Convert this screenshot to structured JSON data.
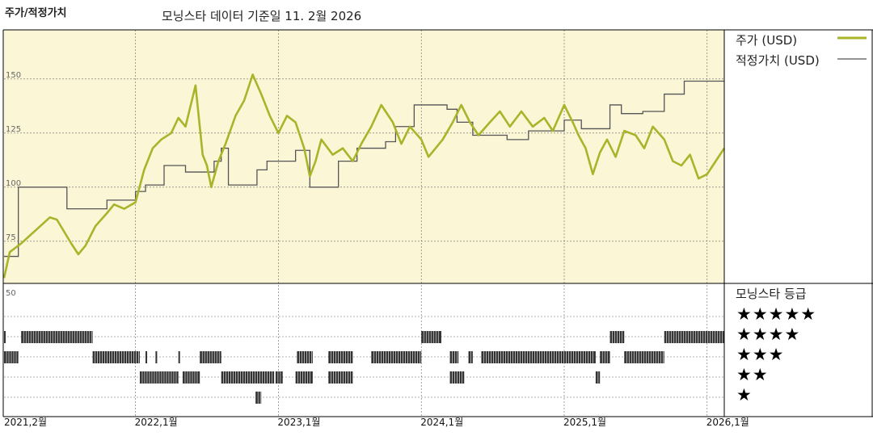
{
  "header": {
    "title": "주가/적정가치",
    "source": "모닝스타 데이터 기준일 11. 2월 2026"
  },
  "legend": {
    "price": "주가 (USD)",
    "fair_value": "적정가치 (USD)"
  },
  "rating_panel": {
    "title": "모닝스타 등급",
    "star_rows": [
      "★★★★★",
      "★★★★",
      "★★★",
      "★★",
      "★"
    ]
  },
  "colors": {
    "plot_bg": "#faf6d6",
    "price_line": "#a8b52a",
    "fair_value_line": "#555555",
    "rating_bar": "#333333",
    "grid": "#666666"
  },
  "chart_data": [
    {
      "type": "line",
      "title": "주가/적정가치",
      "y_ticks": [
        150,
        125,
        100,
        75
      ],
      "ylim": [
        50,
        155
      ],
      "x_start": 2021.08,
      "x_end": 2026.12,
      "x_ticks": [
        {
          "x": 2021.08,
          "label": "2021,2월"
        },
        {
          "x": 2022.0,
          "label": "2022,1월"
        },
        {
          "x": 2023.0,
          "label": "2023,1월"
        },
        {
          "x": 2024.0,
          "label": "2024,1월"
        },
        {
          "x": 2025.0,
          "label": "2025,1월"
        },
        {
          "x": 2026.0,
          "label": "2026,1월"
        }
      ],
      "grid": "dashed",
      "legend_position": "right",
      "series": [
        {
          "name": "주가 (USD)",
          "style": "line",
          "points": [
            [
              2021.08,
              58
            ],
            [
              2021.12,
              70
            ],
            [
              2021.2,
              74
            ],
            [
              2021.3,
              80
            ],
            [
              2021.4,
              86
            ],
            [
              2021.45,
              85
            ],
            [
              2021.55,
              74
            ],
            [
              2021.6,
              69
            ],
            [
              2021.65,
              73
            ],
            [
              2021.72,
              82
            ],
            [
              2021.8,
              88
            ],
            [
              2021.85,
              92
            ],
            [
              2021.92,
              90
            ],
            [
              2022.0,
              93
            ],
            [
              2022.06,
              108
            ],
            [
              2022.12,
              118
            ],
            [
              2022.18,
              122
            ],
            [
              2022.25,
              125
            ],
            [
              2022.3,
              132
            ],
            [
              2022.35,
              128
            ],
            [
              2022.42,
              147
            ],
            [
              2022.47,
              115
            ],
            [
              2022.5,
              110
            ],
            [
              2022.53,
              100
            ],
            [
              2022.58,
              112
            ],
            [
              2022.63,
              120
            ],
            [
              2022.7,
              133
            ],
            [
              2022.76,
              140
            ],
            [
              2022.82,
              152
            ],
            [
              2022.88,
              143
            ],
            [
              2022.94,
              133
            ],
            [
              2023.0,
              125
            ],
            [
              2023.06,
              133
            ],
            [
              2023.12,
              130
            ],
            [
              2023.18,
              118
            ],
            [
              2023.22,
              105
            ],
            [
              2023.26,
              112
            ],
            [
              2023.3,
              122
            ],
            [
              2023.38,
              115
            ],
            [
              2023.45,
              118
            ],
            [
              2023.52,
              112
            ],
            [
              2023.58,
              120
            ],
            [
              2023.65,
              128
            ],
            [
              2023.72,
              138
            ],
            [
              2023.8,
              130
            ],
            [
              2023.86,
              120
            ],
            [
              2023.92,
              128
            ],
            [
              2024.0,
              122
            ],
            [
              2024.05,
              114
            ],
            [
              2024.1,
              118
            ],
            [
              2024.15,
              122
            ],
            [
              2024.22,
              130
            ],
            [
              2024.28,
              138
            ],
            [
              2024.34,
              130
            ],
            [
              2024.4,
              124
            ],
            [
              2024.48,
              130
            ],
            [
              2024.55,
              135
            ],
            [
              2024.62,
              128
            ],
            [
              2024.7,
              135
            ],
            [
              2024.78,
              128
            ],
            [
              2024.86,
              132
            ],
            [
              2024.92,
              126
            ],
            [
              2025.0,
              138
            ],
            [
              2025.06,
              130
            ],
            [
              2025.1,
              124
            ],
            [
              2025.15,
              118
            ],
            [
              2025.2,
              106
            ],
            [
              2025.25,
              116
            ],
            [
              2025.3,
              122
            ],
            [
              2025.36,
              114
            ],
            [
              2025.42,
              126
            ],
            [
              2025.5,
              124
            ],
            [
              2025.56,
              118
            ],
            [
              2025.62,
              128
            ],
            [
              2025.7,
              122
            ],
            [
              2025.76,
              112
            ],
            [
              2025.82,
              110
            ],
            [
              2025.88,
              115
            ],
            [
              2025.94,
              104
            ],
            [
              2026.0,
              106
            ],
            [
              2026.06,
              112
            ],
            [
              2026.12,
              118
            ]
          ]
        },
        {
          "name": "적정가치 (USD)",
          "style": "step",
          "points": [
            [
              2021.08,
              68
            ],
            [
              2021.18,
              100
            ],
            [
              2021.52,
              90
            ],
            [
              2021.8,
              94
            ],
            [
              2022.0,
              98
            ],
            [
              2022.07,
              101
            ],
            [
              2022.2,
              110
            ],
            [
              2022.35,
              107
            ],
            [
              2022.55,
              112
            ],
            [
              2022.6,
              118
            ],
            [
              2022.65,
              101
            ],
            [
              2022.85,
              108
            ],
            [
              2022.92,
              112
            ],
            [
              2023.12,
              117
            ],
            [
              2023.22,
              100
            ],
            [
              2023.42,
              112
            ],
            [
              2023.55,
              118
            ],
            [
              2023.75,
              121
            ],
            [
              2023.82,
              128
            ],
            [
              2023.95,
              138
            ],
            [
              2024.18,
              136
            ],
            [
              2024.25,
              130
            ],
            [
              2024.36,
              124
            ],
            [
              2024.6,
              122
            ],
            [
              2024.75,
              126
            ],
            [
              2025.0,
              131
            ],
            [
              2025.12,
              127
            ],
            [
              2025.32,
              138
            ],
            [
              2025.4,
              134
            ],
            [
              2025.55,
              135
            ],
            [
              2025.7,
              143
            ],
            [
              2025.84,
              149
            ],
            [
              2026.12,
              149
            ]
          ]
        }
      ]
    },
    {
      "type": "timeline",
      "title": "모닝스타 등급",
      "categories": [
        "★★★★★",
        "★★★★",
        "★★★",
        "★★",
        "★"
      ],
      "series": [
        {
          "name": "★★★★",
          "ranges": [
            [
              2021.08,
              2021.09
            ],
            [
              2021.2,
              2021.7
            ],
            [
              2024.0,
              2024.14
            ],
            [
              2025.32,
              2025.42
            ],
            [
              2025.7,
              2026.12
            ]
          ]
        },
        {
          "name": "★★★",
          "ranges": [
            [
              2021.08,
              2021.18
            ],
            [
              2021.7,
              2022.03
            ],
            [
              2022.07,
              2022.08
            ],
            [
              2022.14,
              2022.15
            ],
            [
              2022.3,
              2022.31
            ],
            [
              2022.45,
              2022.6
            ],
            [
              2023.13,
              2023.24
            ],
            [
              2023.35,
              2023.52
            ],
            [
              2023.65,
              2024.0
            ],
            [
              2024.2,
              2024.26
            ],
            [
              2024.33,
              2024.36
            ],
            [
              2024.42,
              2025.22
            ],
            [
              2025.25,
              2025.32
            ],
            [
              2025.42,
              2025.7
            ]
          ]
        },
        {
          "name": "★★",
          "ranges": [
            [
              2022.03,
              2022.3
            ],
            [
              2022.33,
              2022.45
            ],
            [
              2022.6,
              2022.97
            ],
            [
              2022.98,
              2023.03
            ],
            [
              2023.12,
              2023.24
            ],
            [
              2023.35,
              2023.52
            ],
            [
              2024.2,
              2024.3
            ],
            [
              2025.22,
              2025.25
            ]
          ]
        },
        {
          "name": "★",
          "ranges": [
            [
              2022.84,
              2022.88
            ]
          ]
        }
      ]
    }
  ]
}
